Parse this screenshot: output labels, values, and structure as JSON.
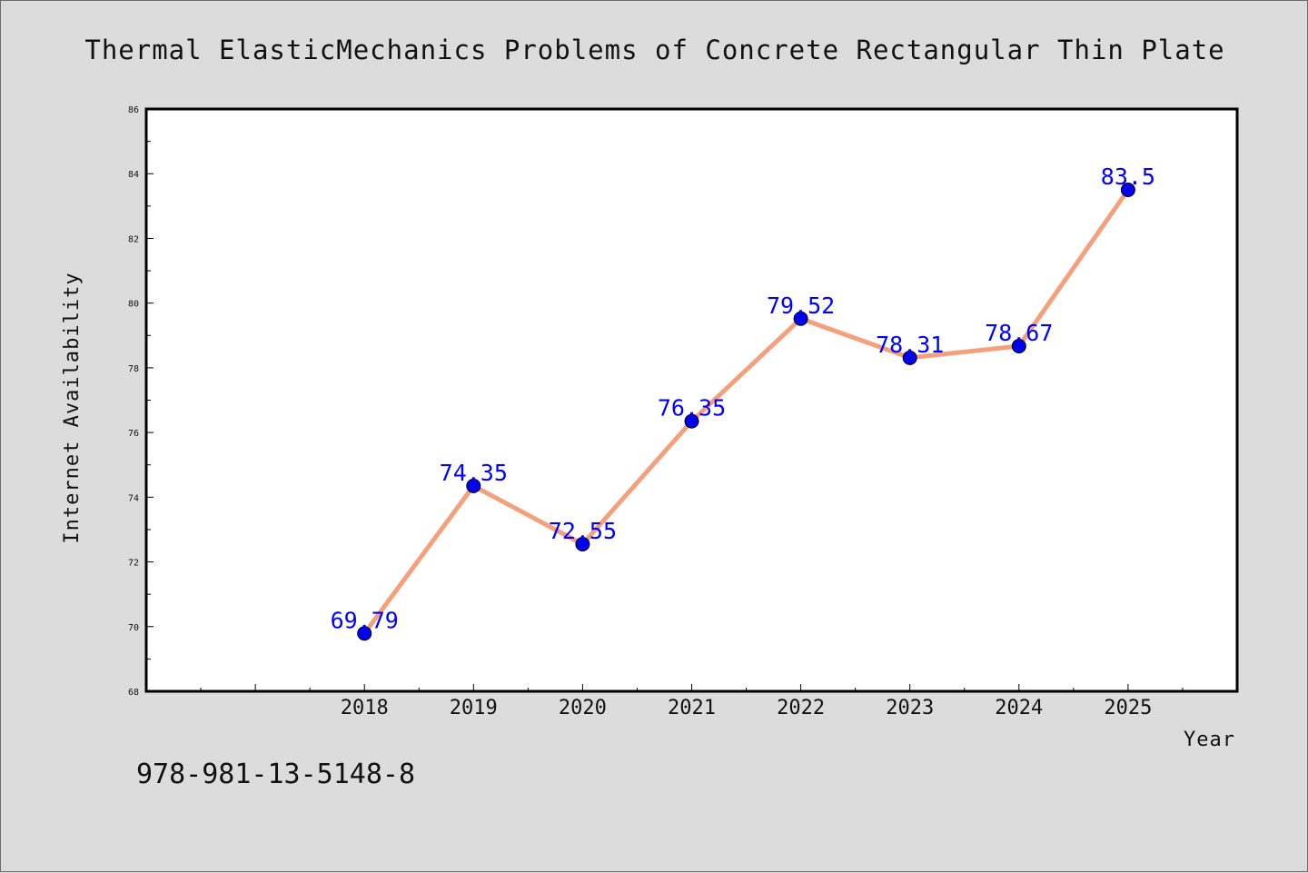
{
  "chart_data": {
    "type": "line",
    "title": "Thermal ElasticMechanics Problems of Concrete Rectangular Thin Plate",
    "xlabel": "Year",
    "ylabel": "Internet Availability",
    "categories": [
      "2018",
      "2019",
      "2020",
      "2021",
      "2022",
      "2023",
      "2024",
      "2025"
    ],
    "series": [
      {
        "values": [
          69.79,
          74.35,
          72.55,
          76.35,
          79.52,
          78.31,
          78.67,
          83.5
        ]
      }
    ],
    "data_labels": [
      "69.79",
      "74.35",
      "72.55",
      "76.35",
      "79.52",
      "78.31",
      "78.67",
      "83.5"
    ],
    "ylim": [
      68,
      86
    ],
    "y_ticks": [
      "68",
      "70",
      "72",
      "74",
      "76",
      "78",
      "80",
      "82",
      "84",
      "86"
    ],
    "x_range": [
      2016,
      2026
    ],
    "grid": false,
    "colors": {
      "line": "#f4a07c",
      "marker": "#0000ee",
      "data_label": "#0000ff",
      "background": "#dcdcdc",
      "plot_area": "#ffffff"
    }
  },
  "footer": {
    "code": "978-981-13-5148-8"
  }
}
